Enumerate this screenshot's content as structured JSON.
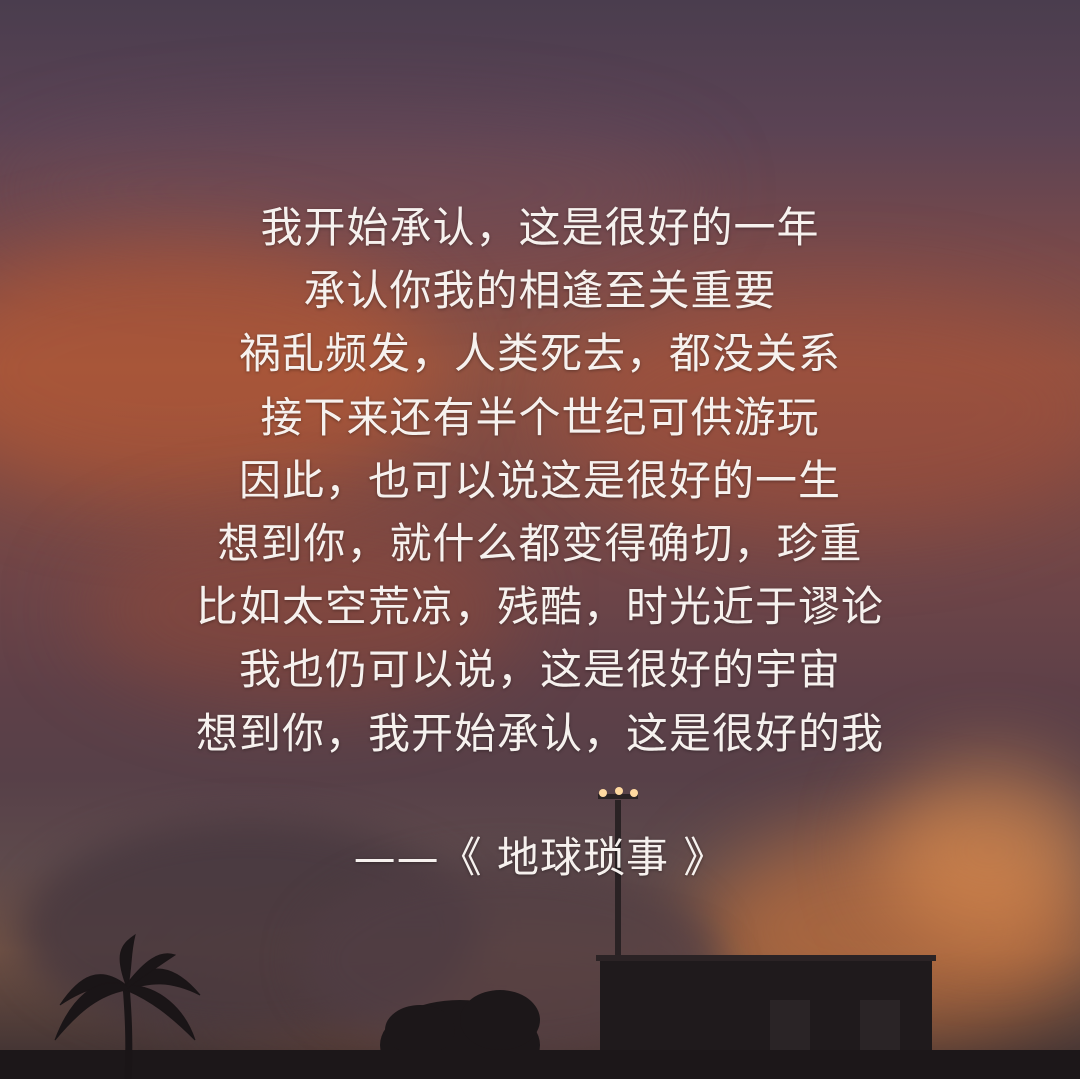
{
  "poem": {
    "lines": [
      "我开始承认，这是很好的一年",
      "承认你我的相逢至关重要",
      "祸乱频发，人类死去，都没关系",
      "接下来还有半个世纪可供游玩",
      "因此，也可以说这是很好的一生",
      "想到你，就什么都变得确切，珍重",
      "比如太空荒凉，残酷，时光近于谬论",
      "我也仍可以说，这是很好的宇宙",
      "想到你，我开始承认，这是很好的我"
    ],
    "source": "——《 地球琐事 》"
  },
  "colors": {
    "text": "#f6f1ee",
    "sky_top": "#4a3d4e",
    "sunset_glow": "#d7783c",
    "silhouette": "#1f1a1c"
  }
}
